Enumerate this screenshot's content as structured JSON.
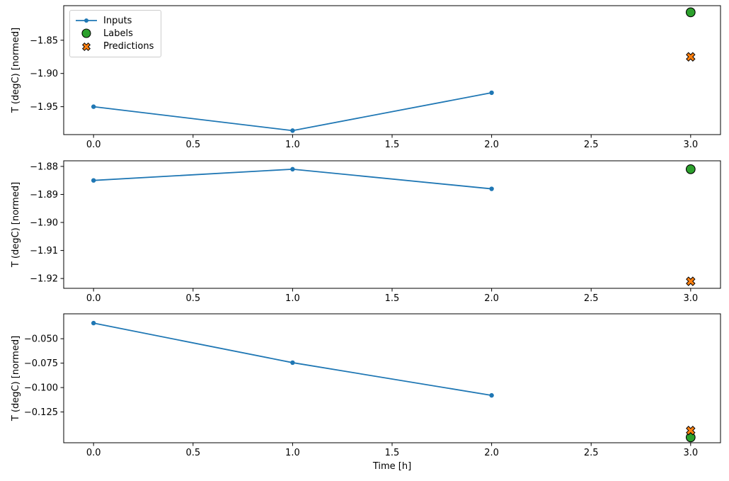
{
  "figure": {
    "xlabel": "Time [h]",
    "ylabel": "T (degC) [normed]",
    "colors": {
      "inputs": "#1f77b4",
      "labels": "#2ca02c",
      "predictions": "#ff7f0e",
      "marker_edge": "#000000",
      "axes": "#000000",
      "legend_border": "#cccccc",
      "background": "#ffffff"
    },
    "legend": {
      "position": "upper left",
      "items": [
        {
          "label": "Inputs",
          "marker": "line-with-dot"
        },
        {
          "label": "Labels",
          "marker": "circle"
        },
        {
          "label": "Predictions",
          "marker": "thick-x"
        }
      ]
    }
  },
  "chart_data": [
    {
      "type": "line",
      "title": "",
      "xlabel": "",
      "ylabel": "T (degC) [normed]",
      "xlim": [
        -0.15,
        3.15
      ],
      "ylim": [
        -1.992,
        -1.798
      ],
      "grid": false,
      "xticks": [
        0.0,
        0.5,
        1.0,
        1.5,
        2.0,
        2.5,
        3.0
      ],
      "xtick_labels": [
        "0.0",
        "0.5",
        "1.0",
        "1.5",
        "2.0",
        "2.5",
        "3.0"
      ],
      "yticks": [
        -1.85,
        -1.9,
        -1.95
      ],
      "ytick_labels": [
        "−1.85",
        "−1.90",
        "−1.95"
      ],
      "series": [
        {
          "name": "Inputs",
          "kind": "line",
          "color": "#1f77b4",
          "x": [
            0,
            1,
            2
          ],
          "y": [
            -1.95,
            -1.986,
            -1.929
          ]
        },
        {
          "name": "Labels",
          "kind": "circle",
          "color": "#2ca02c",
          "x": [
            3
          ],
          "y": [
            -1.808
          ]
        },
        {
          "name": "Predictions",
          "kind": "x",
          "color": "#ff7f0e",
          "x": [
            3
          ],
          "y": [
            -1.875
          ]
        }
      ]
    },
    {
      "type": "line",
      "title": "",
      "xlabel": "",
      "ylabel": "T (degC) [normed]",
      "xlim": [
        -0.15,
        3.15
      ],
      "ylim": [
        -1.9235,
        -1.878
      ],
      "grid": false,
      "xticks": [
        0.0,
        0.5,
        1.0,
        1.5,
        2.0,
        2.5,
        3.0
      ],
      "xtick_labels": [
        "0.0",
        "0.5",
        "1.0",
        "1.5",
        "2.0",
        "2.5",
        "3.0"
      ],
      "yticks": [
        -1.88,
        -1.89,
        -1.9,
        -1.91,
        -1.92
      ],
      "ytick_labels": [
        "−1.88",
        "−1.89",
        "−1.90",
        "−1.91",
        "−1.92"
      ],
      "series": [
        {
          "name": "Inputs",
          "kind": "line",
          "color": "#1f77b4",
          "x": [
            0,
            1,
            2
          ],
          "y": [
            -1.885,
            -1.881,
            -1.888
          ]
        },
        {
          "name": "Labels",
          "kind": "circle",
          "color": "#2ca02c",
          "x": [
            3
          ],
          "y": [
            -1.881
          ]
        },
        {
          "name": "Predictions",
          "kind": "x",
          "color": "#ff7f0e",
          "x": [
            3
          ],
          "y": [
            -1.921
          ]
        }
      ]
    },
    {
      "type": "line",
      "title": "",
      "xlabel": "Time [h]",
      "ylabel": "T (degC) [normed]",
      "xlim": [
        -0.15,
        3.15
      ],
      "ylim": [
        -0.1565,
        -0.0245
      ],
      "grid": false,
      "xticks": [
        0.0,
        0.5,
        1.0,
        1.5,
        2.0,
        2.5,
        3.0
      ],
      "xtick_labels": [
        "0.0",
        "0.5",
        "1.0",
        "1.5",
        "2.0",
        "2.5",
        "3.0"
      ],
      "yticks": [
        -0.05,
        -0.075,
        -0.1,
        -0.125
      ],
      "ytick_labels": [
        "−0.050",
        "−0.075",
        "−0.100",
        "−0.125"
      ],
      "series": [
        {
          "name": "Inputs",
          "kind": "line",
          "color": "#1f77b4",
          "x": [
            0,
            1,
            2
          ],
          "y": [
            -0.034,
            -0.0745,
            -0.108
          ]
        },
        {
          "name": "Labels",
          "kind": "circle",
          "color": "#2ca02c",
          "x": [
            3
          ],
          "y": [
            -0.151
          ]
        },
        {
          "name": "Predictions",
          "kind": "x",
          "color": "#ff7f0e",
          "x": [
            3
          ],
          "y": [
            -0.144
          ]
        }
      ]
    }
  ]
}
